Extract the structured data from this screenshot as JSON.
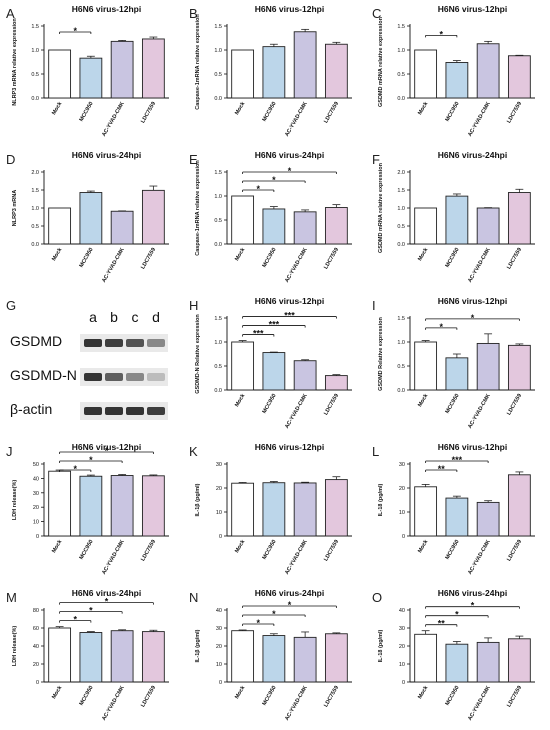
{
  "colors": {
    "bar_fills": [
      "#ffffff",
      "#bcd6ea",
      "#c9c5e1",
      "#e3c7dd"
    ],
    "bar_stroke": "#222222",
    "axis": "#111111"
  },
  "categories": [
    "Mock",
    "MCC950",
    "AC-YVAD-CMK",
    "LDC7559"
  ],
  "western_blot": {
    "label": "G",
    "lanes": [
      "a",
      "b",
      "c",
      "d"
    ],
    "rows": [
      {
        "name": "GSDMD",
        "intensity": [
          0.85,
          0.8,
          0.7,
          0.45
        ]
      },
      {
        "name": "GSDMD-N",
        "intensity": [
          0.85,
          0.65,
          0.45,
          0.2
        ]
      },
      {
        "name": "β-actin",
        "intensity": [
          0.85,
          0.85,
          0.85,
          0.8
        ]
      }
    ]
  },
  "chart_data": [
    {
      "label": "A",
      "type": "bar",
      "title": "H6N6 virus-12hpi",
      "ylabel": "NLRP3 mRNA relative expression",
      "categories": [
        "Mock",
        "MCC950",
        "AC-YVAD-CMK",
        "LDC7559"
      ],
      "values": [
        1.0,
        0.83,
        1.18,
        1.23
      ],
      "errors": [
        0.0,
        0.04,
        0.02,
        0.04
      ],
      "ylim": [
        0,
        1.5
      ],
      "yticks": [
        0.0,
        0.5,
        1.0,
        1.5
      ],
      "significance": [
        {
          "from": 0,
          "to": 1,
          "text": "*"
        }
      ]
    },
    {
      "label": "B",
      "type": "bar",
      "title": "H6N6 virus-12hpi",
      "ylabel": "Caspase-1mRNA relative expression",
      "categories": [
        "Mock",
        "MCC950",
        "AC-YVAD-CMK",
        "LDC7559"
      ],
      "values": [
        1.0,
        1.07,
        1.38,
        1.12
      ],
      "errors": [
        0.0,
        0.05,
        0.05,
        0.04
      ],
      "ylim": [
        0,
        1.5
      ],
      "yticks": [
        0.0,
        0.5,
        1.0,
        1.5
      ],
      "significance": []
    },
    {
      "label": "C",
      "type": "bar",
      "title": "H6N6 virus-12hpi",
      "ylabel": "GSDMD mRNA relative expression",
      "categories": [
        "Mock",
        "MCC950",
        "AC-YVAD-CMK",
        "LDC7559"
      ],
      "values": [
        1.0,
        0.74,
        1.13,
        0.88
      ],
      "errors": [
        0.0,
        0.04,
        0.05,
        0.01
      ],
      "ylim": [
        0,
        1.5
      ],
      "yticks": [
        0.0,
        0.5,
        1.0,
        1.5
      ],
      "significance": [
        {
          "from": 0,
          "to": 1,
          "text": "*"
        }
      ]
    },
    {
      "label": "D",
      "type": "bar",
      "title": "H6N6 virus-24hpi",
      "ylabel": "NLRP3 mRNA",
      "categories": [
        "Mock",
        "MCC950",
        "AC-YVAD-CMK",
        "LDC7559"
      ],
      "values": [
        1.0,
        1.43,
        0.91,
        1.49
      ],
      "errors": [
        0.0,
        0.04,
        0.01,
        0.12
      ],
      "ylim": [
        0,
        2.0
      ],
      "yticks": [
        0.0,
        0.5,
        1.0,
        1.5,
        2.0
      ],
      "significance": []
    },
    {
      "label": "E",
      "type": "bar",
      "title": "H6N6 virus-24hpi",
      "ylabel": "Caspase-1mRNA relative expression",
      "categories": [
        "Mock",
        "MCC950",
        "AC-YVAD-CMK",
        "LDC7559"
      ],
      "values": [
        1.0,
        0.73,
        0.67,
        0.76
      ],
      "errors": [
        0.0,
        0.05,
        0.04,
        0.06
      ],
      "ylim": [
        0,
        1.5
      ],
      "yticks": [
        0.0,
        0.5,
        1.0,
        1.5
      ],
      "significance": [
        {
          "from": 0,
          "to": 1,
          "text": "*"
        },
        {
          "from": 0,
          "to": 2,
          "text": "*"
        },
        {
          "from": 0,
          "to": 3,
          "text": "*"
        }
      ]
    },
    {
      "label": "F",
      "type": "bar",
      "title": "H6N6 virus-24hpi",
      "ylabel": "GSDMD mRNA relative expression",
      "categories": [
        "Mock",
        "MCC950",
        "AC-YVAD-CMK",
        "LDC7559"
      ],
      "values": [
        1.0,
        1.33,
        1.0,
        1.43
      ],
      "errors": [
        0.0,
        0.06,
        0.01,
        0.09
      ],
      "ylim": [
        0,
        2.0
      ],
      "yticks": [
        0.0,
        0.5,
        1.0,
        1.5,
        2.0
      ],
      "significance": []
    },
    {
      "label": "H",
      "type": "bar",
      "title": "H6N6 virus-12hpi",
      "ylabel": "GSDMD-N Relative expression",
      "categories": [
        "Mock",
        "MCC950",
        "AC-YVAD-CMK",
        "LDC7559"
      ],
      "values": [
        1.0,
        0.78,
        0.61,
        0.3
      ],
      "errors": [
        0.03,
        0.01,
        0.02,
        0.02
      ],
      "ylim": [
        0,
        1.5
      ],
      "yticks": [
        0.0,
        0.5,
        1.0,
        1.5
      ],
      "significance": [
        {
          "from": 0,
          "to": 1,
          "text": "***"
        },
        {
          "from": 0,
          "to": 2,
          "text": "***"
        },
        {
          "from": 0,
          "to": 3,
          "text": "***"
        }
      ]
    },
    {
      "label": "I",
      "type": "bar",
      "title": "H6N6 virus-12hpi",
      "ylabel": "GSDMD Relative expression",
      "categories": [
        "Mock",
        "MCC950",
        "AC-YVAD-CMK",
        "LDC7559"
      ],
      "values": [
        1.0,
        0.67,
        0.97,
        0.93
      ],
      "errors": [
        0.03,
        0.08,
        0.2,
        0.03
      ],
      "ylim": [
        0,
        1.5
      ],
      "yticks": [
        0.0,
        0.5,
        1.0,
        1.5
      ],
      "significance": [
        {
          "from": 0,
          "to": 1,
          "text": "*"
        },
        {
          "from": 0,
          "to": 3,
          "text": "*"
        }
      ]
    },
    {
      "label": "J",
      "type": "bar",
      "title": "H6N6 virus-12hpi",
      "ylabel": "LDH release(%)",
      "categories": [
        "Mock",
        "MCC950",
        "AC-YVAD-CMK",
        "LDC7559"
      ],
      "values": [
        45,
        41.5,
        42,
        41.8
      ],
      "errors": [
        0.8,
        0.8,
        0.7,
        0.6
      ],
      "ylim": [
        0,
        50
      ],
      "yticks": [
        0,
        10,
        20,
        30,
        40,
        50
      ],
      "significance": [
        {
          "from": 0,
          "to": 1,
          "text": "*"
        },
        {
          "from": 0,
          "to": 2,
          "text": "*"
        },
        {
          "from": 0,
          "to": 3,
          "text": "*"
        }
      ]
    },
    {
      "label": "K",
      "type": "bar",
      "title": "H6N6 virus-12hpi",
      "ylabel": "IL-1β (pg/ml)",
      "categories": [
        "Mock",
        "MCC950",
        "AC-YVAD-CMK",
        "LDC7559"
      ],
      "values": [
        22,
        22.2,
        22.1,
        23.5
      ],
      "errors": [
        0.3,
        0.5,
        0.3,
        1.2
      ],
      "ylim": [
        0,
        30
      ],
      "yticks": [
        0,
        10,
        20,
        30
      ],
      "significance": []
    },
    {
      "label": "L",
      "type": "bar",
      "title": "H6N6 virus-12hpi",
      "ylabel": "IL-18 (pg/ml)",
      "categories": [
        "Mock",
        "MCC950",
        "AC-YVAD-CMK",
        "LDC7559"
      ],
      "values": [
        20.5,
        15.8,
        14,
        25.5
      ],
      "errors": [
        1.0,
        0.8,
        0.7,
        1.2
      ],
      "ylim": [
        0,
        30
      ],
      "yticks": [
        0,
        10,
        20,
        30
      ],
      "significance": [
        {
          "from": 0,
          "to": 1,
          "text": "**"
        },
        {
          "from": 0,
          "to": 2,
          "text": "***"
        }
      ]
    },
    {
      "label": "M",
      "type": "bar",
      "title": "H6N6 virus-24hpi",
      "ylabel": "LDH release(%)",
      "categories": [
        "Mock",
        "MCC950",
        "AC-YVAD-CMK",
        "LDC7559"
      ],
      "values": [
        60,
        55,
        57,
        56
      ],
      "errors": [
        1.5,
        1.0,
        1.0,
        1.5
      ],
      "ylim": [
        0,
        80
      ],
      "yticks": [
        0,
        20,
        40,
        60,
        80
      ],
      "significance": [
        {
          "from": 0,
          "to": 1,
          "text": "*"
        },
        {
          "from": 0,
          "to": 2,
          "text": "*"
        },
        {
          "from": 0,
          "to": 3,
          "text": "*"
        }
      ]
    },
    {
      "label": "N",
      "type": "bar",
      "title": "H6N6 virus-24hpi",
      "ylabel": "IL-1β (pg/ml)",
      "categories": [
        "Mock",
        "MCC950",
        "AC-YVAD-CMK",
        "LDC7559"
      ],
      "values": [
        28.5,
        25.8,
        24.8,
        26.8
      ],
      "errors": [
        0.4,
        1.0,
        3.0,
        0.5
      ],
      "ylim": [
        0,
        40
      ],
      "yticks": [
        0,
        10,
        20,
        30,
        40
      ],
      "significance": [
        {
          "from": 0,
          "to": 1,
          "text": "*"
        },
        {
          "from": 0,
          "to": 2,
          "text": "*"
        },
        {
          "from": 0,
          "to": 3,
          "text": "*"
        }
      ]
    },
    {
      "label": "O",
      "type": "bar",
      "title": "H6N6 virus-24hpi",
      "ylabel": "IL-18 (pg/ml)",
      "categories": [
        "Mock",
        "MCC950",
        "AC-YVAD-CMK",
        "LDC7559"
      ],
      "values": [
        26.5,
        21,
        22,
        24
      ],
      "errors": [
        2.0,
        1.5,
        2.5,
        1.5
      ],
      "ylim": [
        0,
        40
      ],
      "yticks": [
        0,
        10,
        20,
        30,
        40
      ],
      "significance": [
        {
          "from": 0,
          "to": 1,
          "text": "**"
        },
        {
          "from": 0,
          "to": 2,
          "text": "*"
        },
        {
          "from": 0,
          "to": 3,
          "text": "*"
        }
      ]
    }
  ]
}
